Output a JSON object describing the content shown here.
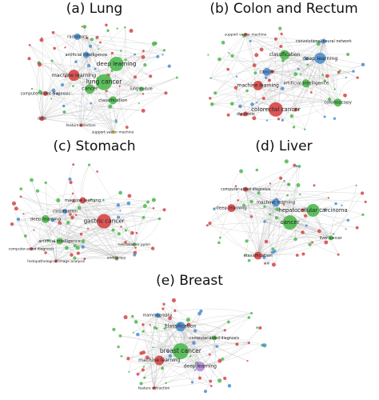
{
  "panels": [
    {
      "title": "(a) Lung",
      "nodes": [
        {
          "label": "radiomics",
          "color": "#4a8fd0"
        },
        {
          "label": "artificial intelligence",
          "color": "#4a8fd0"
        },
        {
          "label": "deep learning",
          "color": "#4cb84c"
        },
        {
          "label": "machine learning",
          "color": "#d64545"
        },
        {
          "label": "lung cancer",
          "color": "#4cb84c"
        },
        {
          "label": "cancer",
          "color": "#4cb84c"
        },
        {
          "label": "classification",
          "color": "#4cb84c"
        },
        {
          "label": "computer-aided diagnosis",
          "color": "#d64545"
        },
        {
          "label": "data",
          "color": "#d64545"
        },
        {
          "label": "feature selection",
          "color": "#d64545"
        },
        {
          "label": "support vector machine",
          "color": "#e0c020"
        },
        {
          "label": "lung nodule",
          "color": "#4cb84c"
        }
      ]
    },
    {
      "title": "(b) Colon and Rectum",
      "nodes": [
        {
          "label": "colorectal cancer",
          "color": "#d64545"
        },
        {
          "label": "classification",
          "color": "#4cb84c"
        },
        {
          "label": "deep learning",
          "color": "#4a8fd0"
        },
        {
          "label": "cancer",
          "color": "#4a8fd0"
        },
        {
          "label": "machine learning",
          "color": "#d64545"
        },
        {
          "label": "artificial intelligence",
          "color": "#4cb84c"
        },
        {
          "label": "colonoscopy",
          "color": "#4cb84c"
        },
        {
          "label": "diagnosis",
          "color": "#d64545"
        },
        {
          "label": "convolutional neural network",
          "color": "#4a8fd0"
        },
        {
          "label": "support vector machine",
          "color": "#d64545"
        }
      ]
    },
    {
      "title": "(c) Stomach",
      "nodes": [
        {
          "label": "machine learning",
          "color": "#d64545"
        },
        {
          "label": "deep learning",
          "color": "#4cb84c"
        },
        {
          "label": "gastric cancer",
          "color": "#d64545"
        },
        {
          "label": "classification",
          "color": "#4a8fd0"
        },
        {
          "label": "artificial intelligence",
          "color": "#4cb84c"
        },
        {
          "label": "computer-aided diagnosis",
          "color": "#d64545"
        },
        {
          "label": "helicobacter pylori",
          "color": "#4cb84c"
        },
        {
          "label": "histopathological image analysis",
          "color": "#d64545"
        },
        {
          "label": "endoscopy",
          "color": "#4cb84c"
        }
      ]
    },
    {
      "title": "(d) Liver",
      "nodes": [
        {
          "label": "deep learning",
          "color": "#d64545"
        },
        {
          "label": "machine learning",
          "color": "#4a8fd0"
        },
        {
          "label": "hepatocellular carcinoma",
          "color": "#4cb84c"
        },
        {
          "label": "cancer",
          "color": "#4cb84c"
        },
        {
          "label": "classification",
          "color": "#d64545"
        },
        {
          "label": "computer-aided diagnosis",
          "color": "#d64545"
        },
        {
          "label": "liver cancer",
          "color": "#4cb84c"
        }
      ]
    },
    {
      "title": "(e) Breast",
      "nodes": [
        {
          "label": "classification",
          "color": "#4a8fd0"
        },
        {
          "label": "breast cancer",
          "color": "#4cb84c"
        },
        {
          "label": "machine learning",
          "color": "#d64545"
        },
        {
          "label": "deep learning",
          "color": "#b48ad8"
        },
        {
          "label": "mammography",
          "color": "#4a8fd0"
        },
        {
          "label": "computer-aided diagnosis",
          "color": "#4cb84c"
        },
        {
          "label": "feature extraction",
          "color": "#d64545"
        }
      ]
    }
  ]
}
